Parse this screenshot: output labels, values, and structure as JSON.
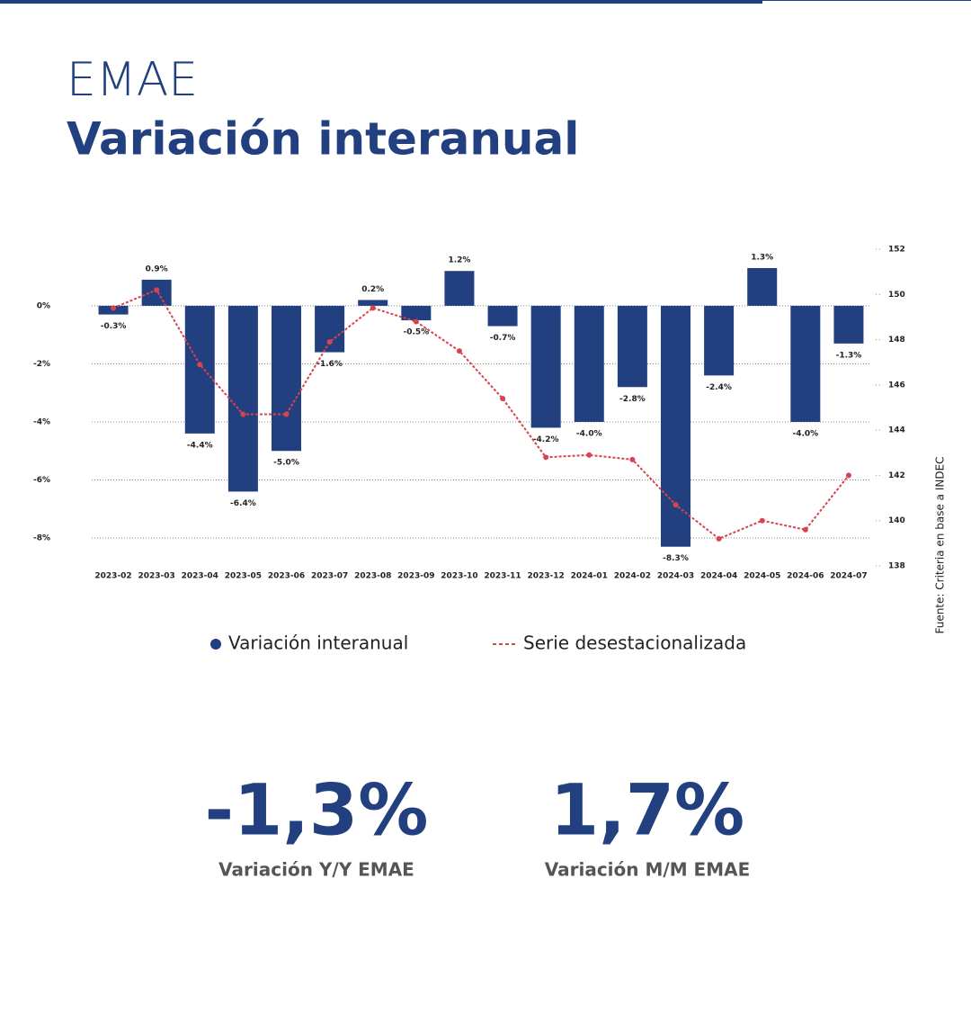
{
  "header": {
    "kicker": "EMAE",
    "title": "Variación interanual"
  },
  "chart_data": {
    "type": "bar",
    "categories": [
      "2023-02",
      "2023-03",
      "2023-04",
      "2023-05",
      "2023-06",
      "2023-07",
      "2023-08",
      "2023-09",
      "2023-10",
      "2023-11",
      "2023-12",
      "2024-01",
      "2024-02",
      "2024-03",
      "2024-04",
      "2024-05",
      "2024-06",
      "2024-07"
    ],
    "series": [
      {
        "name": "Variación interanual",
        "type": "bar",
        "color": "#22407f",
        "values": [
          -0.3,
          0.9,
          -4.4,
          -6.4,
          -5.0,
          -1.6,
          0.2,
          -0.5,
          1.2,
          -0.7,
          -4.2,
          -4.0,
          -2.8,
          -8.3,
          -2.4,
          1.3,
          -4.0,
          -1.3
        ],
        "value_labels": [
          "-0.3%",
          "0.9%",
          "-4.4%",
          "-6.4%",
          "-5.0%",
          "-1.6%",
          "0.2%",
          "-0.5%",
          "1.2%",
          "-0.7%",
          "-4.2%",
          "-4.0%",
          "-2.8%",
          "-8.3%",
          "-2.4%",
          "1.3%",
          "-4.0%",
          "-1.3%"
        ]
      },
      {
        "name": "Serie desestacionalizada",
        "type": "line",
        "axis": "y2",
        "color": "#d9434e",
        "dashed": true,
        "values": [
          149.4,
          150.2,
          146.9,
          144.7,
          144.7,
          147.9,
          149.4,
          148.8,
          147.5,
          145.4,
          142.8,
          142.9,
          142.7,
          140.7,
          139.2,
          140.0,
          139.6,
          142.0
        ]
      }
    ],
    "ylim": [
      -8.96,
      1.95
    ],
    "yticks": [
      {
        "value": 0,
        "label": "0%"
      },
      {
        "value": -2,
        "label": "-2%"
      },
      {
        "value": -4,
        "label": "-4%"
      },
      {
        "value": -6,
        "label": "-6%"
      },
      {
        "value": -8,
        "label": "-8%"
      }
    ],
    "y2lim": [
      138,
      152
    ],
    "y2ticks": [
      138,
      140,
      142,
      144,
      146,
      148,
      150,
      152
    ],
    "grid": true,
    "legend": "bottom",
    "source": "Fuente: Criteria en base a INDEC"
  },
  "kpis": [
    {
      "value": "-1,3%",
      "label": "Variación Y/Y EMAE"
    },
    {
      "value": "1,7%",
      "label": "Variación M/M EMAE"
    }
  ]
}
